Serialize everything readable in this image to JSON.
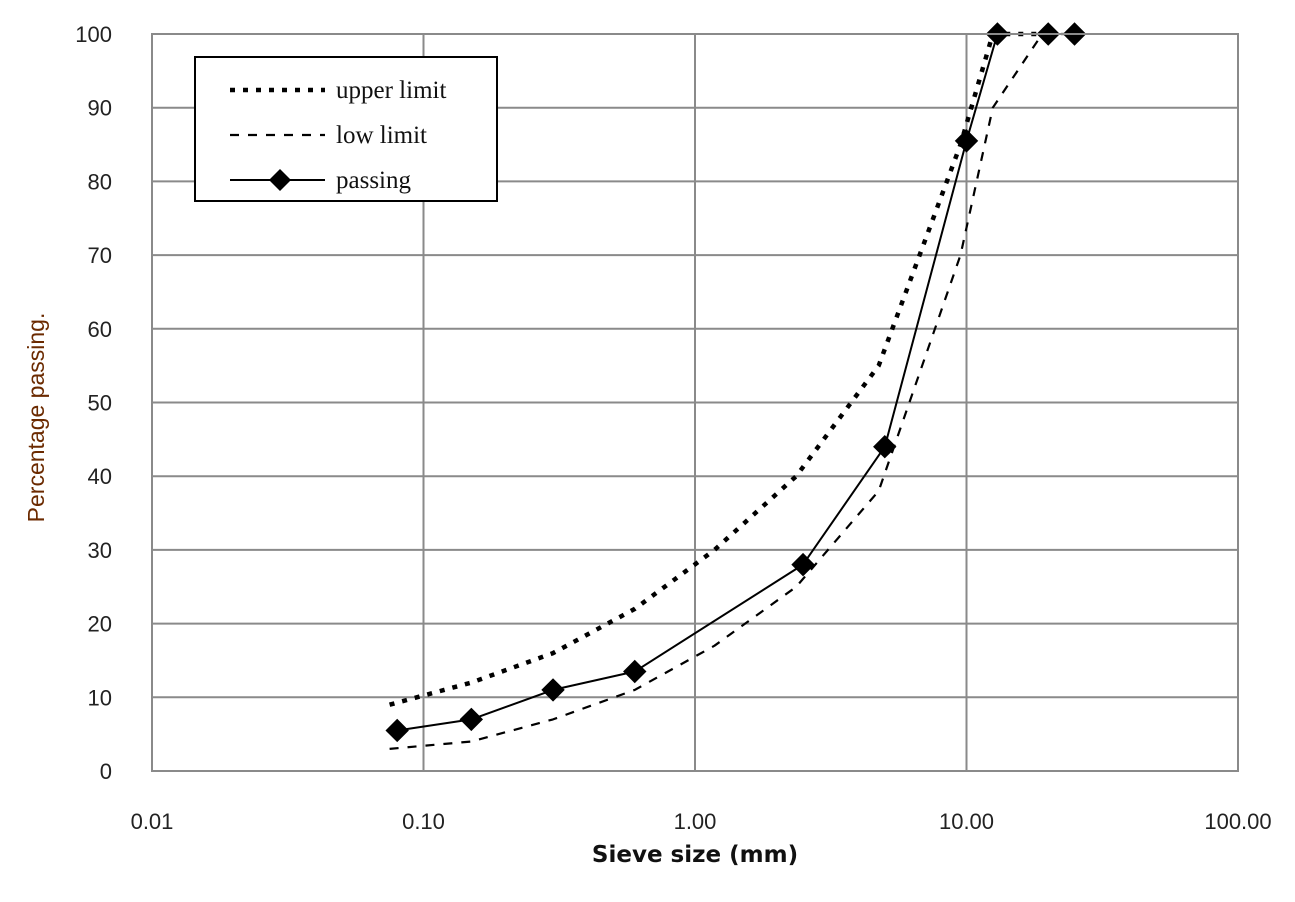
{
  "chart_data": {
    "type": "line",
    "title": "",
    "xlabel": "Sieve size (mm)",
    "ylabel": "Percentage passing.",
    "xscale": "log",
    "xlim": [
      0.01,
      100
    ],
    "ylim": [
      0,
      100
    ],
    "grid": true,
    "legend_position": "top-left",
    "x_ticks": [
      {
        "value": 0.01,
        "label": "0.01"
      },
      {
        "value": 0.1,
        "label": "0.10"
      },
      {
        "value": 1,
        "label": "1.00"
      },
      {
        "value": 10,
        "label": "10.00"
      },
      {
        "value": 100,
        "label": "100.00"
      }
    ],
    "y_ticks": [
      {
        "value": 0,
        "label": "0"
      },
      {
        "value": 10,
        "label": "10"
      },
      {
        "value": 20,
        "label": "20"
      },
      {
        "value": 30,
        "label": "30"
      },
      {
        "value": 40,
        "label": "40"
      },
      {
        "value": 50,
        "label": "50"
      },
      {
        "value": 60,
        "label": "60"
      },
      {
        "value": 70,
        "label": "70"
      },
      {
        "value": 80,
        "label": "80"
      },
      {
        "value": 90,
        "label": "90"
      },
      {
        "value": 100,
        "label": "100"
      }
    ],
    "series": [
      {
        "name": "upper limit",
        "style": "dotted-bold",
        "color": "#000000",
        "x": [
          0.075,
          0.15,
          0.3,
          0.6,
          1.18,
          2.36,
          4.75,
          9.5,
          12.5,
          19
        ],
        "y": [
          9,
          12,
          16,
          22,
          30,
          40,
          55,
          85,
          100,
          100
        ]
      },
      {
        "name": "low limit",
        "style": "dashed",
        "color": "#000000",
        "x": [
          0.075,
          0.15,
          0.3,
          0.6,
          1.18,
          2.36,
          4.75,
          9.5,
          12.5,
          19,
          25
        ],
        "y": [
          3,
          4,
          7,
          11,
          17,
          25,
          38,
          70,
          90,
          100,
          100
        ]
      },
      {
        "name": "passing",
        "style": "solid-diamond",
        "color": "#000000",
        "x": [
          0.08,
          0.15,
          0.3,
          0.6,
          2.5,
          5,
          10,
          13,
          20,
          25
        ],
        "y": [
          5.5,
          7,
          11,
          13.5,
          28,
          44,
          85.5,
          100,
          100,
          100
        ]
      }
    ]
  }
}
